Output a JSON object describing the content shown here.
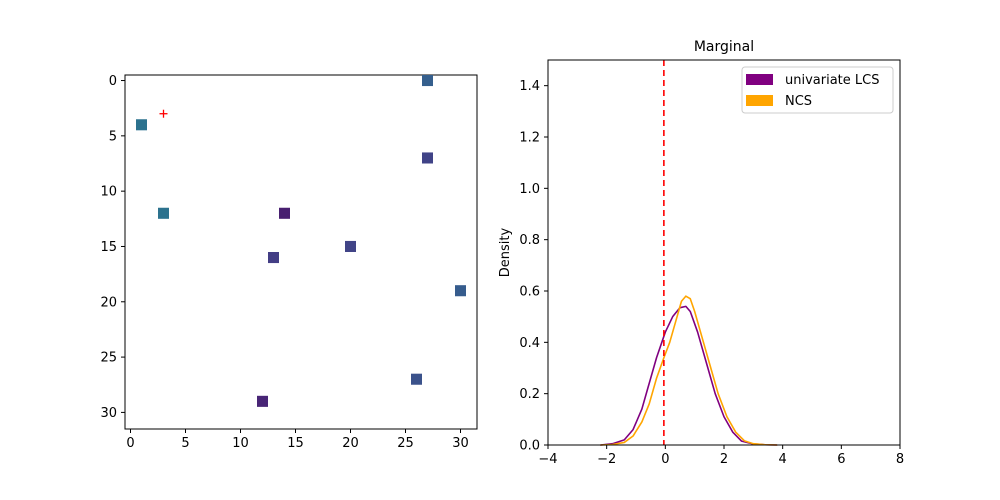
{
  "chart_data": [
    {
      "type": "scatter",
      "title": "",
      "xlabel": "",
      "ylabel": "",
      "xlim": [
        -0.5,
        31.5
      ],
      "ylim": [
        31.5,
        -0.5
      ],
      "y_inverted": true,
      "xticks": [
        0,
        5,
        10,
        15,
        20,
        25,
        30
      ],
      "yticks": [
        0,
        5,
        10,
        15,
        20,
        25,
        30
      ],
      "marker": "square",
      "cells": [
        {
          "x": 27,
          "y": 0,
          "color": "#355f8d"
        },
        {
          "x": 1,
          "y": 4,
          "color": "#2c728e"
        },
        {
          "x": 27,
          "y": 7,
          "color": "#404387"
        },
        {
          "x": 14,
          "y": 12,
          "color": "#481f70"
        },
        {
          "x": 3,
          "y": 12,
          "color": "#2c728e"
        },
        {
          "x": 20,
          "y": 15,
          "color": "#414487"
        },
        {
          "x": 13,
          "y": 16,
          "color": "#433e85"
        },
        {
          "x": 30,
          "y": 19,
          "color": "#365c8d"
        },
        {
          "x": 26,
          "y": 27,
          "color": "#3b528b"
        },
        {
          "x": 12,
          "y": 29,
          "color": "#482576"
        }
      ],
      "target_marker": {
        "x": 3,
        "y": 3,
        "symbol": "+",
        "color": "#ff0000"
      }
    },
    {
      "type": "line",
      "title": "Marginal",
      "xlabel": "",
      "ylabel": "Density",
      "xlim": [
        -4,
        8
      ],
      "ylim": [
        0,
        1.5
      ],
      "xticks": [
        -4,
        -2,
        0,
        2,
        4,
        6,
        8
      ],
      "xtick_labels": [
        "−4",
        "−2",
        "0",
        "2",
        "4",
        "6",
        "8"
      ],
      "yticks": [
        0.0,
        0.2,
        0.4,
        0.6,
        0.8,
        1.0,
        1.2,
        1.4
      ],
      "ytick_labels": [
        "0.0",
        "0.2",
        "0.4",
        "0.6",
        "0.8",
        "1.0",
        "1.2",
        "1.4"
      ],
      "vline": {
        "x": -0.05,
        "color": "#ff0000",
        "style": "dashed"
      },
      "legend_position": "top-right",
      "series": [
        {
          "name": "univariate LCS",
          "color": "#800080",
          "x": [
            -2.2,
            -1.8,
            -1.4,
            -1.1,
            -0.8,
            -0.6,
            -0.3,
            0.0,
            0.25,
            0.5,
            0.7,
            0.85,
            1.1,
            1.4,
            1.7,
            2.0,
            2.3,
            2.6,
            3.0,
            3.4,
            3.8
          ],
          "y": [
            0.0,
            0.005,
            0.02,
            0.06,
            0.14,
            0.22,
            0.34,
            0.44,
            0.5,
            0.535,
            0.54,
            0.52,
            0.44,
            0.32,
            0.2,
            0.11,
            0.05,
            0.015,
            0.004,
            0.001,
            0.0
          ]
        },
        {
          "name": "NCS",
          "color": "#ffa500",
          "x": [
            -2.2,
            -1.8,
            -1.4,
            -1.1,
            -0.8,
            -0.55,
            -0.3,
            -0.05,
            0.15,
            0.35,
            0.55,
            0.7,
            0.85,
            1.0,
            1.2,
            1.5,
            1.8,
            2.1,
            2.4,
            2.7,
            3.0,
            3.4,
            3.8
          ],
          "y": [
            0.0,
            0.002,
            0.01,
            0.035,
            0.09,
            0.16,
            0.26,
            0.34,
            0.4,
            0.48,
            0.56,
            0.58,
            0.57,
            0.52,
            0.44,
            0.32,
            0.2,
            0.11,
            0.05,
            0.016,
            0.005,
            0.001,
            0.0
          ]
        }
      ]
    }
  ]
}
